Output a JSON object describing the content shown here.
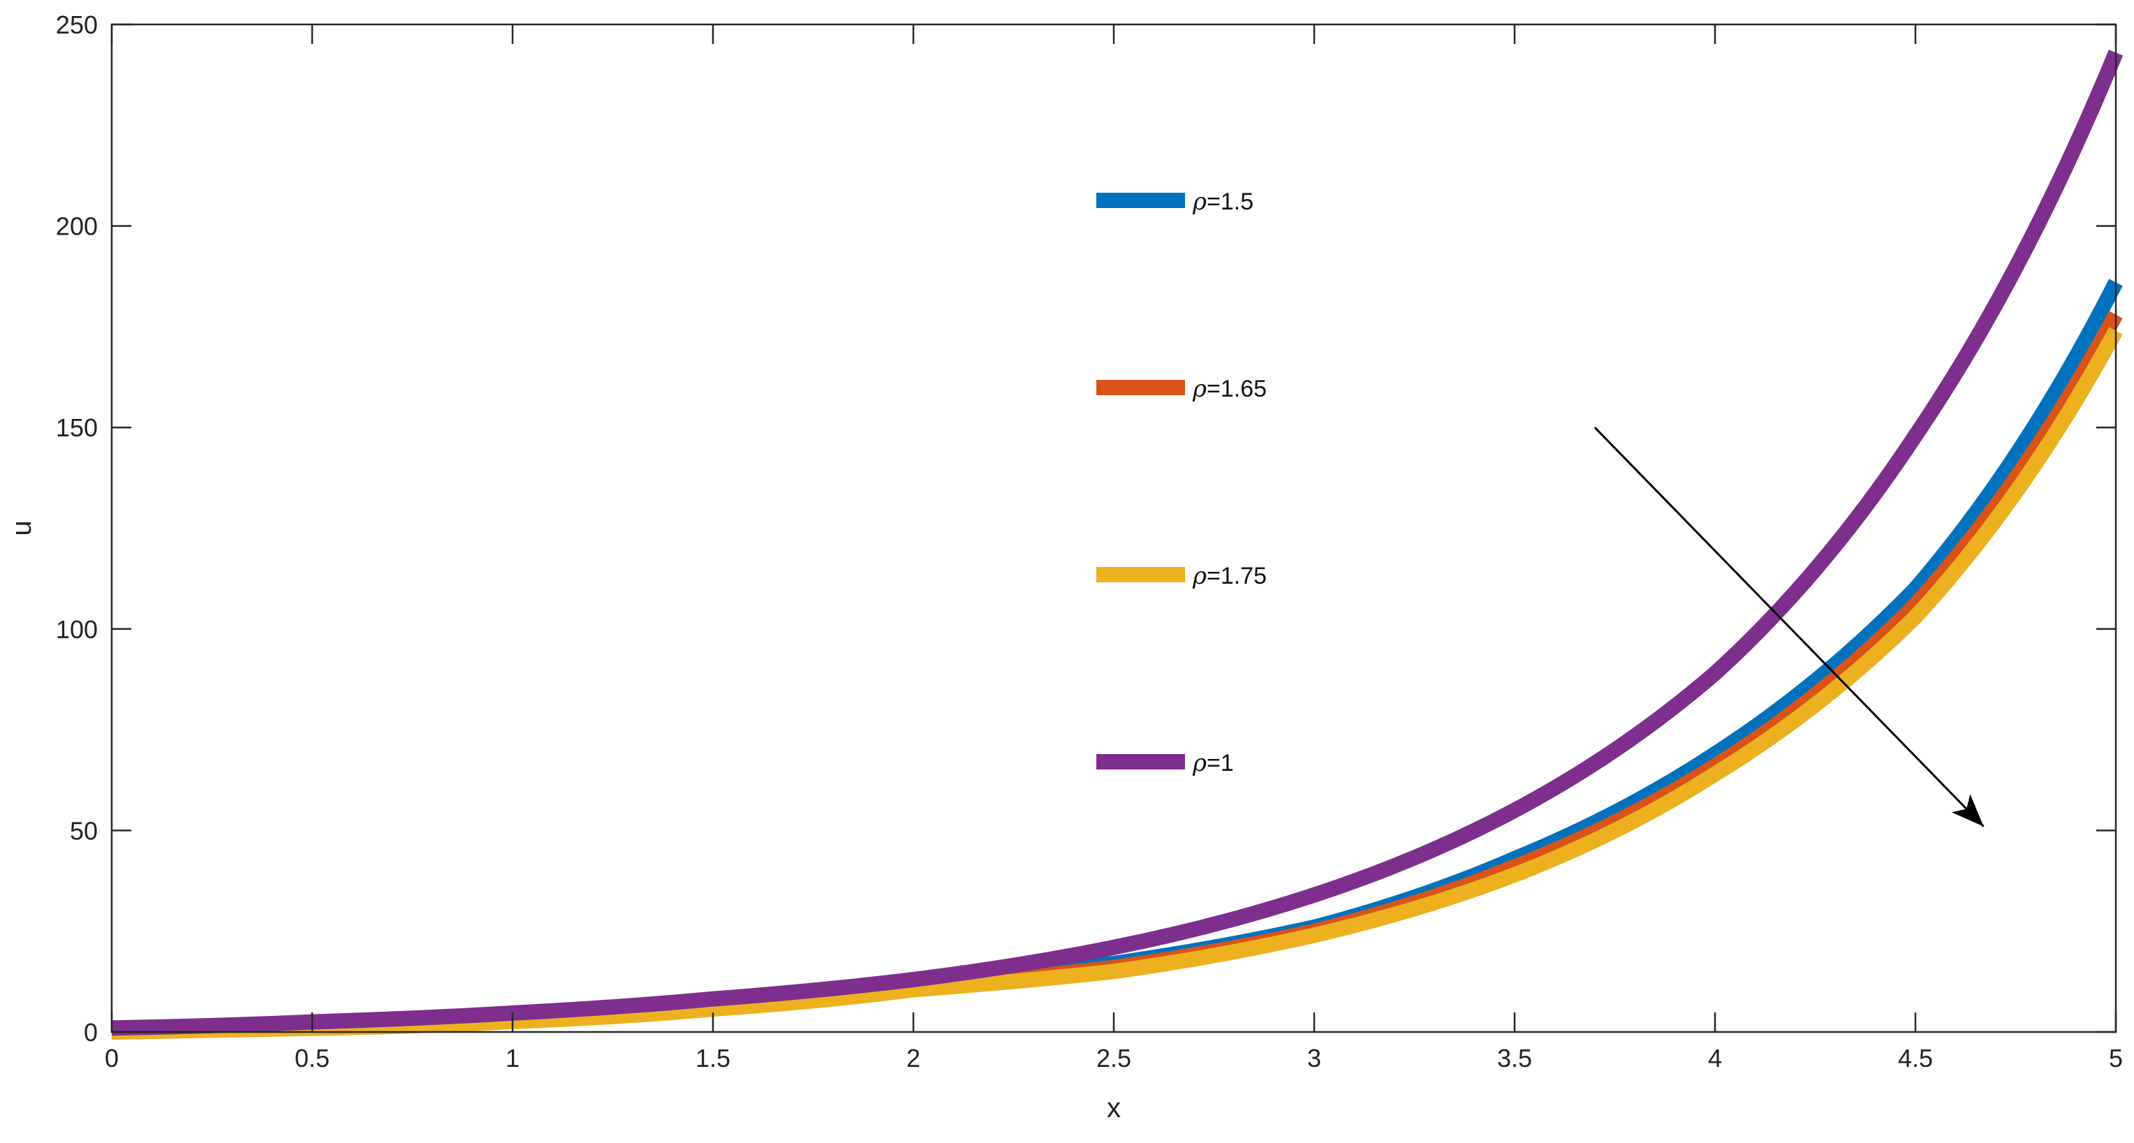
{
  "chart_data": {
    "type": "line",
    "title": "",
    "xlabel": "x",
    "ylabel": "u",
    "xlim": [
      0,
      5
    ],
    "ylim": [
      0,
      250
    ],
    "xticks": [
      "0",
      "0.5",
      "1",
      "1.5",
      "2",
      "2.5",
      "3",
      "3.5",
      "4",
      "4.5",
      "5"
    ],
    "yticks": [
      "0",
      "50",
      "100",
      "150",
      "200",
      "250"
    ],
    "grid": false,
    "x": [
      0,
      0.5,
      1,
      1.5,
      2,
      2.5,
      3,
      3.5,
      4,
      4.5,
      5
    ],
    "series": [
      {
        "name": "ρ=1.5",
        "rho": "ρ",
        "value": "=1.5",
        "color": "#0072BD",
        "values": [
          0,
          1.1,
          3.1,
          6.5,
          12,
          17,
          26,
          43,
          69,
          110,
          186
        ]
      },
      {
        "name": "ρ=1.65",
        "rho": "ρ",
        "value": "=1.65",
        "color": "#D95319",
        "values": [
          0,
          1.0,
          2.8,
          6.0,
          11,
          16,
          25,
          41,
          66,
          106,
          178
        ]
      },
      {
        "name": "ρ=1.75",
        "rho": "ρ",
        "value": "=1.75",
        "color": "#EDB120",
        "values": [
          0,
          0.9,
          2.6,
          5.7,
          10.5,
          15,
          24,
          39,
          64,
          103,
          174
        ]
      },
      {
        "name": "ρ=1",
        "rho": "ρ",
        "value": "=1",
        "color": "#7E2F8E",
        "values": [
          1,
          2.5,
          4.7,
          8.2,
          13,
          21,
          34,
          55,
          89,
          148,
          243
        ]
      }
    ],
    "legend_placement": "center-top",
    "annotation": {
      "type": "arrow",
      "from": [
        3.7,
        150
      ],
      "to": [
        4.67,
        51
      ]
    }
  }
}
